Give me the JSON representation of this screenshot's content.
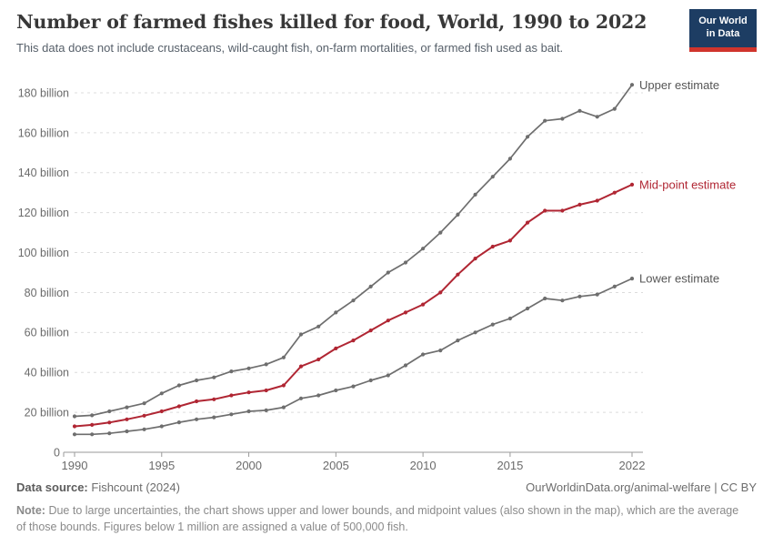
{
  "header": {
    "title": "Number of farmed fishes killed for food, World, 1990 to 2022",
    "subtitle": "This data does not include crustaceans, wild-caught fish, on-farm mortalities, or farmed fish used as bait.",
    "logo": {
      "line1": "Our World",
      "line2": "in Data",
      "bg_color": "#1d3d63",
      "stripe_color": "#d0342c"
    }
  },
  "chart_data": {
    "type": "line",
    "title": "Number of farmed fishes killed for food, World, 1990 to 2022",
    "xlabel": "",
    "ylabel": "",
    "unit": "billion fish",
    "grid": "dashed horizontal",
    "legend_position": "right-end-labels",
    "ylim": [
      0,
      185
    ],
    "y_ticks": [
      20,
      40,
      60,
      80,
      100,
      120,
      140,
      160,
      180
    ],
    "y_tick_suffix": " billion",
    "x_ticks": [
      1990,
      1995,
      2000,
      2005,
      2010,
      2015,
      2022
    ],
    "x": [
      1990,
      1991,
      1992,
      1993,
      1994,
      1995,
      1996,
      1997,
      1998,
      1999,
      2000,
      2001,
      2002,
      2003,
      2004,
      2005,
      2006,
      2007,
      2008,
      2009,
      2010,
      2011,
      2012,
      2013,
      2014,
      2015,
      2016,
      2017,
      2018,
      2019,
      2020,
      2021,
      2022
    ],
    "series": [
      {
        "name": "Upper estimate",
        "color": "#6e6e6e",
        "label_color": "#565656",
        "values": [
          18,
          18.5,
          20.5,
          22.5,
          24.5,
          29.5,
          33.5,
          36,
          37.5,
          40.5,
          42,
          44,
          47.5,
          59,
          63,
          70,
          76,
          83,
          90,
          95,
          102,
          110,
          119,
          129,
          138,
          147,
          158,
          166,
          167,
          171,
          168,
          172,
          184
        ]
      },
      {
        "name": "Mid-point estimate",
        "color": "#b02633",
        "label_color": "#b02633",
        "values": [
          13,
          13.7,
          14.9,
          16.5,
          18.3,
          20.5,
          23,
          25.5,
          26.5,
          28.5,
          30,
          31,
          33.5,
          43,
          46.5,
          52,
          56,
          61,
          66,
          70,
          74,
          80,
          89,
          97,
          103,
          106,
          115,
          121,
          121,
          124,
          126,
          130,
          134
        ]
      },
      {
        "name": "Lower estimate",
        "color": "#6e6e6e",
        "label_color": "#565656",
        "values": [
          9,
          9,
          9.5,
          10.5,
          11.5,
          13,
          15,
          16.5,
          17.5,
          19,
          20.5,
          21,
          22.5,
          27,
          28.5,
          31,
          33,
          36,
          38.5,
          43.5,
          49,
          51,
          56,
          60,
          64,
          67,
          72,
          77,
          76,
          78,
          79,
          83,
          87
        ]
      }
    ],
    "zero_label": "0"
  },
  "footer": {
    "source_label": "Data source:",
    "source_value": "Fishcount (2024)",
    "rights": "OurWorldinData.org/animal-welfare | CC BY",
    "note_label": "Note:",
    "note_text": "Due to large uncertainties, the chart shows upper and lower bounds, and midpoint values (also shown in the map), which are the average of those bounds. Figures below 1 million are assigned a value of 500,000 fish."
  }
}
